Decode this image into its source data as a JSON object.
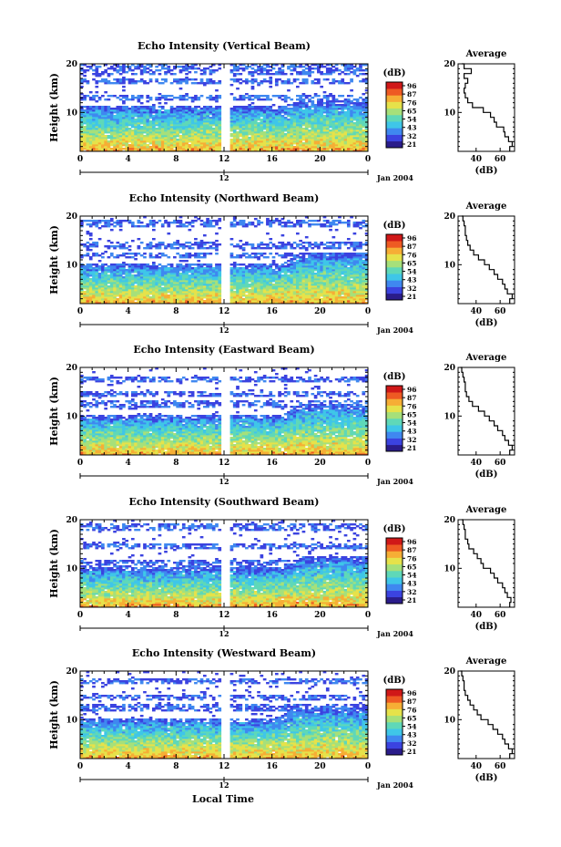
{
  "figure": {
    "xaxis_title": "Local Time",
    "date_label": "Jan 2004",
    "ylabel": "Height (km)",
    "colorbar_unit": "(dB)",
    "colorbar_ticks": [
      "96",
      "87",
      "76",
      "65",
      "54",
      "43",
      "32",
      "21"
    ],
    "avg_title": "Average",
    "avg_xlabel": "(dB)",
    "colors": {
      "colormap": [
        "#2a1c8a",
        "#3b43e0",
        "#3f88f0",
        "#3fc6e8",
        "#5fd8b8",
        "#a6e07a",
        "#e6e24a",
        "#f6ae35",
        "#ee5a23",
        "#d01818"
      ]
    }
  },
  "chart_data": [
    {
      "type": "heatmap",
      "title": "Echo Intensity (Vertical Beam)",
      "xlabel": "",
      "ylabel": "Height (km)",
      "x_ticks": [
        "0",
        "4",
        "8",
        "12",
        "16",
        "20",
        "0"
      ],
      "x_sub_ticks": [
        "12"
      ],
      "y_ticks": [
        "20",
        "10"
      ],
      "xlim": [
        0,
        24
      ],
      "ylim": [
        2,
        20
      ],
      "data_gap_hours": [
        11.8,
        12.4
      ],
      "colorbar": {
        "unit": "(dB)",
        "ticks": [
          96,
          87,
          76,
          65,
          54,
          43,
          32,
          21
        ]
      },
      "notes": {
        "boundary_before_km": 10.5,
        "boundary_after_km": 11.5,
        "transition_hour": 17.5,
        "bands_km": [
          18.5,
          19.5,
          16.5,
          13
        ]
      },
      "average_profile": {
        "title": "Average",
        "xlabel": "(dB)",
        "x_ticks": [
          40,
          60
        ],
        "y_ticks": [
          20,
          10
        ],
        "xlim": [
          25,
          72
        ],
        "ylim": [
          2,
          20
        ],
        "height_km": [
          2,
          3,
          4,
          5,
          6,
          7,
          8,
          9,
          10,
          11,
          12,
          13,
          14,
          15,
          16,
          17,
          18,
          19,
          20
        ],
        "db": [
          68,
          70,
          67,
          64,
          63,
          57,
          55,
          52,
          46,
          37,
          33,
          31,
          30,
          31,
          33,
          30,
          36,
          30,
          28
        ]
      }
    },
    {
      "type": "heatmap",
      "title": "Echo Intensity (Northward Beam)",
      "xlabel": "",
      "ylabel": "Height (km)",
      "x_ticks": [
        "0",
        "4",
        "8",
        "12",
        "16",
        "20",
        "0"
      ],
      "x_sub_ticks": [
        "12"
      ],
      "y_ticks": [
        "20",
        "10"
      ],
      "xlim": [
        0,
        24
      ],
      "ylim": [
        2,
        20
      ],
      "data_gap_hours": [
        11.8,
        12.4
      ],
      "colorbar": {
        "unit": "(dB)",
        "ticks": [
          96,
          87,
          76,
          65,
          54,
          43,
          32,
          21
        ]
      },
      "notes": {
        "boundary_before_km": 9.5,
        "boundary_after_km": 11.5,
        "transition_hour": 17.5,
        "bands_km": [
          18.5,
          14,
          12
        ]
      },
      "average_profile": {
        "title": "Average",
        "xlabel": "(dB)",
        "x_ticks": [
          40,
          60
        ],
        "y_ticks": [
          20,
          10
        ],
        "xlim": [
          25,
          72
        ],
        "ylim": [
          2,
          20
        ],
        "height_km": [
          2,
          3,
          4,
          5,
          6,
          7,
          8,
          9,
          10,
          11,
          12,
          13,
          14,
          15,
          16,
          17,
          18,
          19,
          20
        ],
        "db": [
          68,
          70,
          66,
          64,
          62,
          58,
          55,
          51,
          47,
          42,
          38,
          35,
          33,
          32,
          31,
          31,
          30,
          29,
          28
        ]
      }
    },
    {
      "type": "heatmap",
      "title": "Echo Intensity (Eastward Beam)",
      "xlabel": "",
      "ylabel": "Height (km)",
      "x_ticks": [
        "0",
        "4",
        "8",
        "12",
        "16",
        "20",
        "0"
      ],
      "x_sub_ticks": [
        "12"
      ],
      "y_ticks": [
        "20",
        "10"
      ],
      "xlim": [
        0,
        24
      ],
      "ylim": [
        2,
        20
      ],
      "data_gap_hours": [
        11.8,
        12.4
      ],
      "colorbar": {
        "unit": "(dB)",
        "ticks": [
          96,
          87,
          76,
          65,
          54,
          43,
          32,
          21
        ]
      },
      "notes": {
        "boundary_before_km": 9.5,
        "boundary_after_km": 11.5,
        "transition_hour": 17.5,
        "bands_km": [
          17.5,
          14.5,
          12.5
        ]
      },
      "average_profile": {
        "title": "Average",
        "xlabel": "(dB)",
        "x_ticks": [
          40,
          60
        ],
        "y_ticks": [
          20,
          10
        ],
        "xlim": [
          25,
          72
        ],
        "ylim": [
          2,
          20
        ],
        "height_km": [
          2,
          3,
          4,
          5,
          6,
          7,
          8,
          9,
          10,
          11,
          12,
          13,
          14,
          15,
          16,
          17,
          18,
          19,
          20
        ],
        "db": [
          68,
          70,
          67,
          64,
          62,
          58,
          55,
          51,
          47,
          42,
          37,
          34,
          32,
          31,
          31,
          30,
          29,
          28,
          27
        ]
      }
    },
    {
      "type": "heatmap",
      "title": "Echo Intensity (Southward Beam)",
      "xlabel": "",
      "ylabel": "Height (km)",
      "x_ticks": [
        "0",
        "4",
        "8",
        "12",
        "16",
        "20",
        "0"
      ],
      "x_sub_ticks": [
        "12"
      ],
      "y_ticks": [
        "20",
        "10"
      ],
      "xlim": [
        0,
        24
      ],
      "ylim": [
        2,
        20
      ],
      "data_gap_hours": [
        11.8,
        12.4
      ],
      "colorbar": {
        "unit": "(dB)",
        "ticks": [
          96,
          87,
          76,
          65,
          54,
          43,
          32,
          21
        ]
      },
      "notes": {
        "boundary_before_km": 9.5,
        "boundary_after_km": 11.5,
        "transition_hour": 17.5,
        "bands_km": [
          18.5,
          14.5,
          11
        ]
      },
      "average_profile": {
        "title": "Average",
        "xlabel": "(dB)",
        "x_ticks": [
          40,
          60
        ],
        "y_ticks": [
          20,
          10
        ],
        "xlim": [
          25,
          72
        ],
        "ylim": [
          2,
          20
        ],
        "height_km": [
          2,
          3,
          4,
          5,
          6,
          7,
          8,
          9,
          10,
          11,
          12,
          13,
          14,
          15,
          16,
          17,
          18,
          19,
          20
        ],
        "db": [
          68,
          69,
          66,
          64,
          62,
          58,
          55,
          52,
          46,
          44,
          41,
          38,
          34,
          33,
          31,
          31,
          30,
          29,
          28
        ]
      }
    },
    {
      "type": "heatmap",
      "title": "Echo Intensity (Westward Beam)",
      "xlabel": "Local Time",
      "ylabel": "Height (km)",
      "x_ticks": [
        "0",
        "4",
        "8",
        "12",
        "16",
        "20",
        "0"
      ],
      "x_sub_ticks": [
        "12"
      ],
      "y_ticks": [
        "20",
        "10"
      ],
      "xlim": [
        0,
        24
      ],
      "ylim": [
        2,
        20
      ],
      "data_gap_hours": [
        11.8,
        12.4
      ],
      "colorbar": {
        "unit": "(dB)",
        "ticks": [
          96,
          87,
          76,
          65,
          54,
          43,
          32,
          21
        ]
      },
      "notes": {
        "boundary_before_km": 9.5,
        "boundary_after_km": 11.5,
        "transition_hour": 17.0,
        "bands_km": [
          18,
          14.5,
          12.5
        ]
      },
      "average_profile": {
        "title": "Average",
        "xlabel": "(dB)",
        "x_ticks": [
          40,
          60
        ],
        "y_ticks": [
          20,
          10
        ],
        "xlim": [
          25,
          72
        ],
        "ylim": [
          2,
          20
        ],
        "height_km": [
          2,
          3,
          4,
          5,
          6,
          7,
          8,
          9,
          10,
          11,
          12,
          13,
          14,
          15,
          16,
          17,
          18,
          19,
          20
        ],
        "db": [
          68,
          70,
          67,
          64,
          62,
          58,
          54,
          50,
          44,
          41,
          38,
          35,
          33,
          31,
          30,
          30,
          29,
          28,
          27
        ]
      }
    }
  ]
}
